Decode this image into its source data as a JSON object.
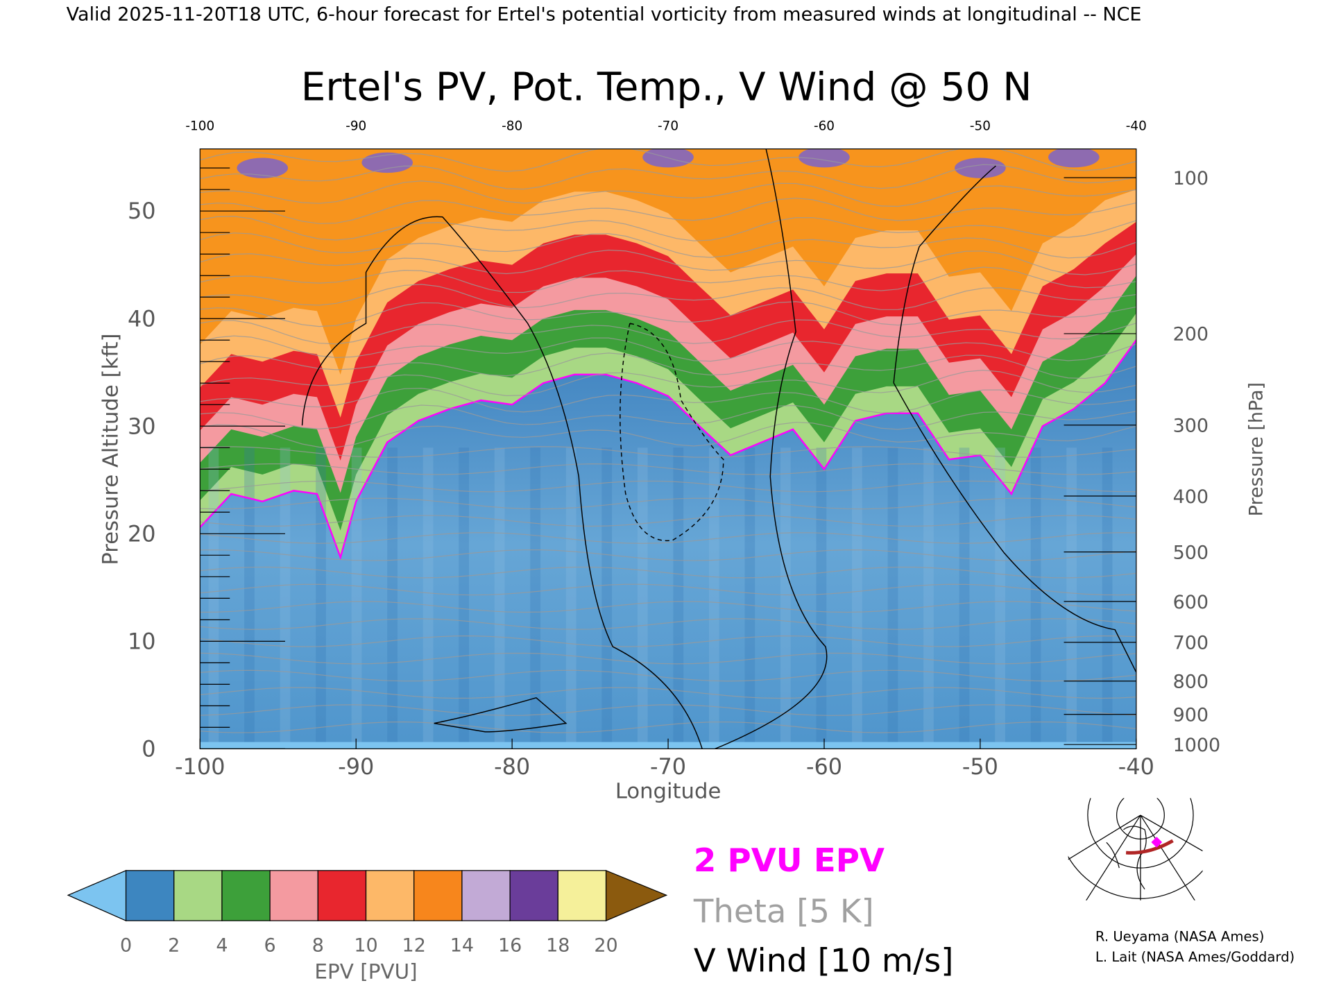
{
  "header": "Valid 2025-11-20T18 UTC, 6-hour forecast for Ertel's potential vorticity from measured winds at longitudinal -- NCE",
  "chart_data": {
    "type": "heatmap",
    "title": "Ertel's PV, Pot. Temp., V Wind @ 50 N",
    "xlabel": "Longitude",
    "ylabel": "Pressure Altitude [kft]",
    "y2label": "Pressure [hPa]",
    "xlim": [
      -100,
      -40
    ],
    "ylim": [
      0,
      55.8
    ],
    "x_ticks": [
      "-100",
      "-90",
      "-80",
      "-70",
      "-60",
      "-50",
      "-40"
    ],
    "x_tick_values": [
      -100,
      -90,
      -80,
      -70,
      -60,
      -50,
      -40
    ],
    "top_ticks": [
      "-100",
      "-90",
      "-80",
      "-70",
      "-60",
      "-50",
      "-40"
    ],
    "y_ticks": [
      "0",
      "10",
      "20",
      "30",
      "40",
      "50"
    ],
    "y_tick_values": [
      0,
      10,
      20,
      30,
      40,
      50
    ],
    "pressure_ticks": [
      {
        "label": "100",
        "kft": 53.1
      },
      {
        "label": "200",
        "kft": 38.6
      },
      {
        "label": "300",
        "kft": 30.1
      },
      {
        "label": "400",
        "kft": 23.5
      },
      {
        "label": "500",
        "kft": 18.3
      },
      {
        "label": "600",
        "kft": 13.7
      },
      {
        "label": "700",
        "kft": 9.9
      },
      {
        "label": "800",
        "kft": 6.3
      },
      {
        "label": "900",
        "kft": 3.2
      },
      {
        "label": "1000",
        "kft": 0.4
      }
    ],
    "pv2_longitudes": [
      -100,
      -98,
      -96,
      -94,
      -92.5,
      -91,
      -90,
      -88,
      -86,
      -84,
      -82,
      -80,
      -78,
      -76,
      -74,
      -72,
      -70,
      -68,
      -66,
      -64,
      -62,
      -60,
      -58,
      -56,
      -54,
      -52,
      -50,
      -48,
      -46,
      -44,
      -42,
      -40
    ],
    "pv2_height_kft": [
      20.6,
      23.7,
      23,
      24,
      23.7,
      17.8,
      23,
      28.5,
      30.5,
      31.6,
      32.4,
      32,
      34,
      34.8,
      34.8,
      34,
      32.8,
      30,
      27.3,
      28.5,
      29.7,
      26,
      30.5,
      31.2,
      31.2,
      26.9,
      27.3,
      23.7,
      30,
      31.6,
      34,
      38
    ],
    "colorbar": {
      "label": "EPV [PVU]",
      "ticks": [
        "0",
        "2",
        "4",
        "6",
        "8",
        "10",
        "12",
        "14",
        "16",
        "18",
        "20"
      ],
      "colors": [
        "#3d86c0",
        "#a8d884",
        "#3da03a",
        "#f49aa0",
        "#e8262e",
        "#fdb868",
        "#f7861c",
        "#c2aad6",
        "#6a3d9a",
        "#f5f09a"
      ],
      "under_color": "#7cc4f0",
      "over_color": "#8b5a0e"
    },
    "legend": [
      {
        "label": "2 PVU EPV",
        "color": "#ff00ff"
      },
      {
        "label": "Theta [5 K]",
        "color": "#a0a0a0"
      },
      {
        "label": "V Wind [10 m/s]",
        "color": "#000000"
      }
    ]
  },
  "credits": [
    "R. Ueyama (NASA Ames)",
    "L. Lait (NASA Ames/Goddard)"
  ]
}
